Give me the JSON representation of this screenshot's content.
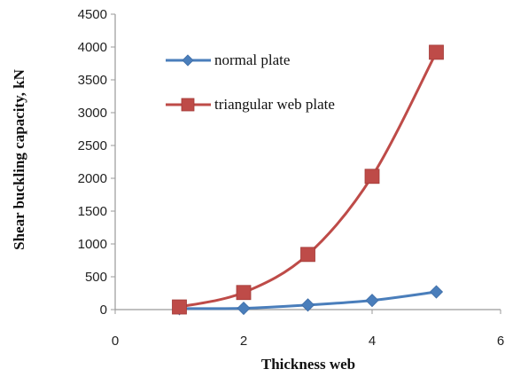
{
  "chart_data": {
    "type": "line",
    "xlabel": "Thickness web",
    "ylabel": "Shear buckling capacity, kN",
    "xlim": [
      0,
      6
    ],
    "ylim": [
      0,
      4500
    ],
    "x_ticks": [
      0,
      2,
      4,
      6
    ],
    "y_ticks": [
      0,
      500,
      1000,
      1500,
      2000,
      2500,
      3000,
      3500,
      4000,
      4500
    ],
    "grid": false,
    "legend_position": "upper-left",
    "series": [
      {
        "name": "normal plate",
        "x": [
          1,
          2,
          3,
          4,
          5
        ],
        "y": [
          15,
          20,
          70,
          140,
          270
        ],
        "color": "#4a7ebb",
        "marker": "diamond"
      },
      {
        "name": "triangular web plate",
        "x": [
          1,
          2,
          3,
          4,
          5
        ],
        "y": [
          40,
          260,
          840,
          2030,
          3920
        ],
        "color": "#be4b48",
        "marker": "square"
      }
    ]
  }
}
